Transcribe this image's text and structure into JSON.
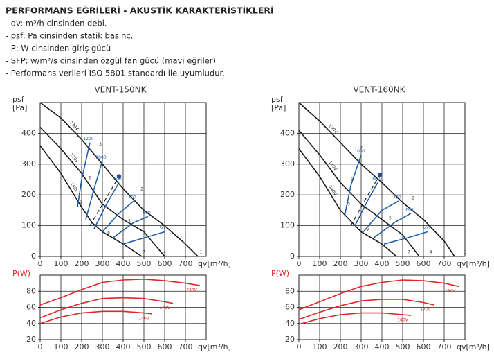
{
  "header": {
    "title": "PERFORMANS EĞRİLERİ - AKUSTİK KARAKTERİSTİKLERİ",
    "items": [
      "- qv: m³/h cinsinden debi.",
      "- psf: Pa cinsinden statik basınç.",
      "- P: W cinsinden giriş gücü",
      "- SFP: w/m³/s cinsinden özgül fan gücü (mavi eğriler)",
      "- Performans verileri ISO 5801 standardı ile uyumludur."
    ]
  },
  "chart_data": [
    {
      "type": "line",
      "title": "VENT-150NK",
      "ylabel": "psf",
      "yunit": "[Pa]",
      "xlabel": "qv[m³/h]",
      "label_position": "along",
      "xlim": [
        0,
        800
      ],
      "ylim": [
        0,
        500
      ],
      "xticks": [
        0,
        100,
        200,
        300,
        400,
        500,
        600,
        700
      ],
      "yticks": [
        0,
        100,
        200,
        300,
        400
      ],
      "grid": true,
      "series": [
        {
          "name": "230V",
          "color": "#1a1a1a",
          "x": [
            0,
            100,
            200,
            300,
            400,
            500,
            600,
            700,
            760
          ],
          "values": [
            500,
            450,
            380,
            300,
            220,
            150,
            100,
            40,
            0
          ]
        },
        {
          "name": "170V",
          "color": "#1a1a1a",
          "x": [
            0,
            100,
            200,
            300,
            400,
            500,
            600
          ],
          "values": [
            420,
            350,
            270,
            170,
            120,
            80,
            0
          ]
        },
        {
          "name": "140V",
          "color": "#1a1a1a",
          "x": [
            0,
            100,
            200,
            250,
            300,
            400,
            490
          ],
          "values": [
            360,
            270,
            160,
            110,
            80,
            40,
            0
          ]
        },
        {
          "name": "1200",
          "color": "#1f5fa8",
          "x": [
            180,
            200,
            240
          ],
          "values": [
            160,
            250,
            370
          ]
        },
        {
          "name": "1000",
          "color": "#1f5fa8",
          "x": [
            220,
            260,
            300
          ],
          "values": [
            120,
            220,
            310
          ]
        },
        {
          "name": "800",
          "color": "#1f5fa8",
          "x": [
            260,
            320,
            380
          ],
          "values": [
            90,
            170,
            240
          ]
        },
        {
          "name": "700",
          "color": "#1f5fa8",
          "x": [
            300,
            380,
            450
          ],
          "values": [
            80,
            140,
            180
          ]
        },
        {
          "name": "600",
          "color": "#1f5fa8",
          "x": [
            350,
            450,
            520
          ],
          "values": [
            60,
            110,
            130
          ]
        },
        {
          "name": "500",
          "color": "#1f5fa8",
          "x": [
            400,
            500,
            600
          ],
          "values": [
            40,
            60,
            80
          ]
        },
        {
          "color": "#1a1a1a",
          "dash": true,
          "x": [
            240,
            310,
            380
          ],
          "values": [
            100,
            180,
            260
          ]
        }
      ],
      "points": [
        {
          "x": 380,
          "y": 260,
          "color": "#1f4e9c"
        }
      ],
      "annotations": [
        {
          "text": "3",
          "x": 280,
          "y": 355
        },
        {
          "text": "2",
          "x": 480,
          "y": 210
        },
        {
          "text": "1",
          "x": 765,
          "y": 5
        },
        {
          "text": "6",
          "x": 230,
          "y": 245
        },
        {
          "text": "5",
          "x": 420,
          "y": 105
        },
        {
          "text": "4",
          "x": 590,
          "y": 5
        },
        {
          "text": "9",
          "x": 185,
          "y": 165
        },
        {
          "text": "8",
          "x": 320,
          "y": 65
        },
        {
          "text": "7",
          "x": 490,
          "y": 5
        }
      ]
    },
    {
      "type": "line",
      "ylabel": "P(W)",
      "ylabel_color": "#e0262b",
      "xlabel": "qv[m³/h]",
      "label_position": "end",
      "xlim": [
        0,
        800
      ],
      "ylim": [
        20,
        100
      ],
      "xticks": [
        0,
        100,
        200,
        300,
        400,
        500,
        600,
        700
      ],
      "yticks": [
        20,
        40,
        60,
        80
      ],
      "grid": true,
      "series": [
        {
          "name": "230V",
          "color": "#e0262b",
          "x": [
            0,
            100,
            200,
            300,
            400,
            500,
            600,
            700,
            770
          ],
          "values": [
            63,
            72,
            82,
            91,
            94,
            95,
            93,
            90,
            87
          ]
        },
        {
          "name": "170V",
          "color": "#e0262b",
          "x": [
            0,
            100,
            200,
            300,
            400,
            500,
            600,
            640
          ],
          "values": [
            47,
            57,
            65,
            71,
            72,
            71,
            67,
            65
          ]
        },
        {
          "name": "140V",
          "color": "#e0262b",
          "x": [
            0,
            100,
            200,
            300,
            400,
            500,
            540
          ],
          "values": [
            40,
            48,
            53,
            55,
            55,
            53,
            52
          ]
        }
      ]
    },
    {
      "type": "line",
      "title": "VENT-160NK",
      "ylabel": "psf",
      "yunit": "[Pa]",
      "xlabel": "qv[m³/h]",
      "label_position": "along",
      "xlim": [
        0,
        800
      ],
      "ylim": [
        0,
        500
      ],
      "xticks": [
        0,
        100,
        200,
        300,
        400,
        500,
        600,
        700
      ],
      "yticks": [
        0,
        100,
        200,
        300,
        400
      ],
      "grid": true,
      "series": [
        {
          "name": "230V",
          "color": "#1a1a1a",
          "x": [
            0,
            100,
            200,
            300,
            400,
            500,
            600,
            700,
            750
          ],
          "values": [
            500,
            440,
            370,
            300,
            240,
            175,
            120,
            50,
            0
          ]
        },
        {
          "name": "170V",
          "color": "#1a1a1a",
          "x": [
            0,
            100,
            200,
            300,
            400,
            500,
            580
          ],
          "values": [
            410,
            330,
            240,
            170,
            120,
            70,
            0
          ]
        },
        {
          "name": "140V",
          "color": "#1a1a1a",
          "x": [
            0,
            100,
            200,
            300,
            400,
            470
          ],
          "values": [
            350,
            260,
            150,
            80,
            40,
            0
          ]
        },
        {
          "name": "1000",
          "color": "#1f5fa8",
          "x": [
            220,
            250,
            300
          ],
          "values": [
            130,
            230,
            330
          ]
        },
        {
          "name": "800",
          "color": "#1f5fa8",
          "x": [
            270,
            330,
            380
          ],
          "values": [
            100,
            180,
            240
          ]
        },
        {
          "name": "700",
          "color": "#1f5fa8",
          "x": [
            310,
            400,
            480
          ],
          "values": [
            80,
            150,
            180
          ]
        },
        {
          "name": "600",
          "color": "#1f5fa8",
          "x": [
            360,
            460,
            540
          ],
          "values": [
            60,
            110,
            140
          ]
        },
        {
          "name": "500",
          "color": "#1f5fa8",
          "x": [
            410,
            520,
            620
          ],
          "values": [
            40,
            60,
            80
          ]
        },
        {
          "color": "#1a1a1a",
          "dash": true,
          "x": [
            250,
            320,
            390
          ],
          "values": [
            100,
            185,
            265
          ]
        }
      ],
      "points": [
        {
          "x": 390,
          "y": 265,
          "color": "#1f4e9c"
        }
      ],
      "annotations": [
        {
          "text": "3",
          "x": 290,
          "y": 345
        },
        {
          "text": "2",
          "x": 540,
          "y": 180
        },
        {
          "text": "1",
          "x": 790,
          "y": 5
        },
        {
          "text": "6",
          "x": 245,
          "y": 240
        },
        {
          "text": "5",
          "x": 430,
          "y": 115
        },
        {
          "text": "4",
          "x": 625,
          "y": 5
        },
        {
          "text": "9",
          "x": 230,
          "y": 160
        },
        {
          "text": "8",
          "x": 325,
          "y": 75
        },
        {
          "text": "7",
          "x": 520,
          "y": 5
        }
      ]
    },
    {
      "type": "line",
      "ylabel": "P(W)",
      "ylabel_color": "#e0262b",
      "xlabel": "qv[m³/h]",
      "label_position": "end",
      "xlim": [
        0,
        800
      ],
      "ylim": [
        20,
        100
      ],
      "xticks": [
        0,
        100,
        200,
        300,
        400,
        500,
        600,
        700
      ],
      "yticks": [
        20,
        40,
        60,
        80
      ],
      "grid": true,
      "series": [
        {
          "name": "230V",
          "color": "#e0262b",
          "x": [
            0,
            100,
            200,
            300,
            400,
            500,
            600,
            700,
            770
          ],
          "values": [
            57,
            67,
            77,
            86,
            91,
            94,
            93,
            90,
            86
          ]
        },
        {
          "name": "170V",
          "color": "#e0262b",
          "x": [
            0,
            100,
            200,
            300,
            400,
            500,
            600,
            650
          ],
          "values": [
            45,
            54,
            62,
            68,
            70,
            70,
            66,
            63
          ]
        },
        {
          "name": "140V",
          "color": "#e0262b",
          "x": [
            0,
            100,
            200,
            300,
            400,
            500,
            540
          ],
          "values": [
            39,
            46,
            51,
            53,
            53,
            51,
            50
          ]
        }
      ]
    }
  ]
}
